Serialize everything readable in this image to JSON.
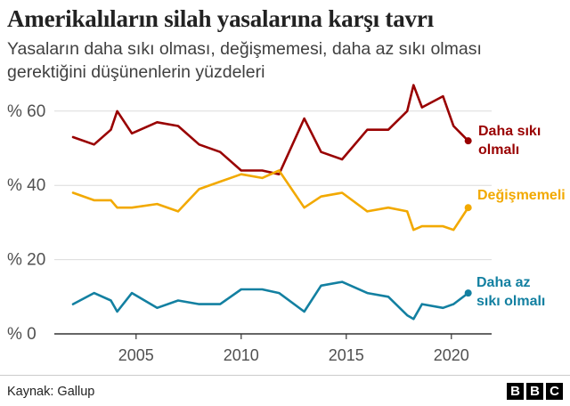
{
  "header": {
    "title": "Amerikalıların silah yasalarına karşı tavrı",
    "subtitle": "Yasaların daha sıkı olması, değişmemesi, daha az sıkı olması gerektiğini düşünenlerin yüzdeleri"
  },
  "footer": {
    "source": "Kaynak: Gallup",
    "logo": [
      "B",
      "B",
      "C"
    ]
  },
  "chart_data": {
    "type": "line",
    "title": "Amerikalıların silah yasalarına karşı tavrı",
    "xlabel": "",
    "ylabel": "",
    "xlim": [
      2001,
      2022
    ],
    "ylim": [
      0,
      65
    ],
    "grid": true,
    "x_ticks": [
      2005,
      2010,
      2015,
      2020
    ],
    "x_tick_labels": [
      "2005",
      "2010",
      "2015",
      "2020"
    ],
    "y_ticks": [
      0,
      20,
      40,
      60
    ],
    "y_tick_labels": [
      "% 0",
      "% 20",
      "% 40",
      "% 60"
    ],
    "series": [
      {
        "name": "Daha sıkı olmalı",
        "label_lines": [
          "Daha sıkı",
          "olmalı"
        ],
        "color": "#990000",
        "x": [
          2002,
          2003,
          2003.8,
          2004.1,
          2004.8,
          2006,
          2007,
          2008,
          2009,
          2010,
          2011,
          2011.8,
          2013,
          2013.8,
          2014.8,
          2016,
          2017,
          2017.9,
          2018.2,
          2018.6,
          2019.6,
          2020.1,
          2020.8
        ],
        "values": [
          53,
          51,
          55,
          60,
          54,
          57,
          56,
          51,
          49,
          44,
          44,
          43,
          58,
          49,
          47,
          55,
          55,
          60,
          67,
          61,
          64,
          56,
          52
        ]
      },
      {
        "name": "Değişmemeli",
        "label_lines": [
          "Değişmemeli"
        ],
        "color": "#f2a900",
        "x": [
          2002,
          2003,
          2003.8,
          2004.1,
          2004.8,
          2006,
          2007,
          2008,
          2009,
          2010,
          2011,
          2011.8,
          2013,
          2013.8,
          2014.8,
          2016,
          2017,
          2017.9,
          2018.2,
          2018.6,
          2019.6,
          2020.1,
          2020.8
        ],
        "values": [
          38,
          36,
          36,
          34,
          34,
          35,
          33,
          39,
          41,
          43,
          42,
          44,
          34,
          37,
          38,
          33,
          34,
          33,
          28,
          29,
          29,
          28,
          34
        ]
      },
      {
        "name": "Daha az sıkı olmalı",
        "label_lines": [
          "Daha az",
          "sıkı olmalı"
        ],
        "color": "#1380a1",
        "x": [
          2002,
          2003,
          2003.8,
          2004.1,
          2004.8,
          2006,
          2007,
          2008,
          2009,
          2010,
          2011,
          2011.8,
          2013,
          2013.8,
          2014.8,
          2016,
          2017,
          2017.9,
          2018.2,
          2018.6,
          2019.6,
          2020.1,
          2020.8
        ],
        "values": [
          8,
          11,
          9,
          6,
          11,
          7,
          9,
          8,
          8,
          12,
          12,
          11,
          6,
          13,
          14,
          11,
          10,
          5,
          4,
          8,
          7,
          8,
          11
        ]
      }
    ]
  }
}
